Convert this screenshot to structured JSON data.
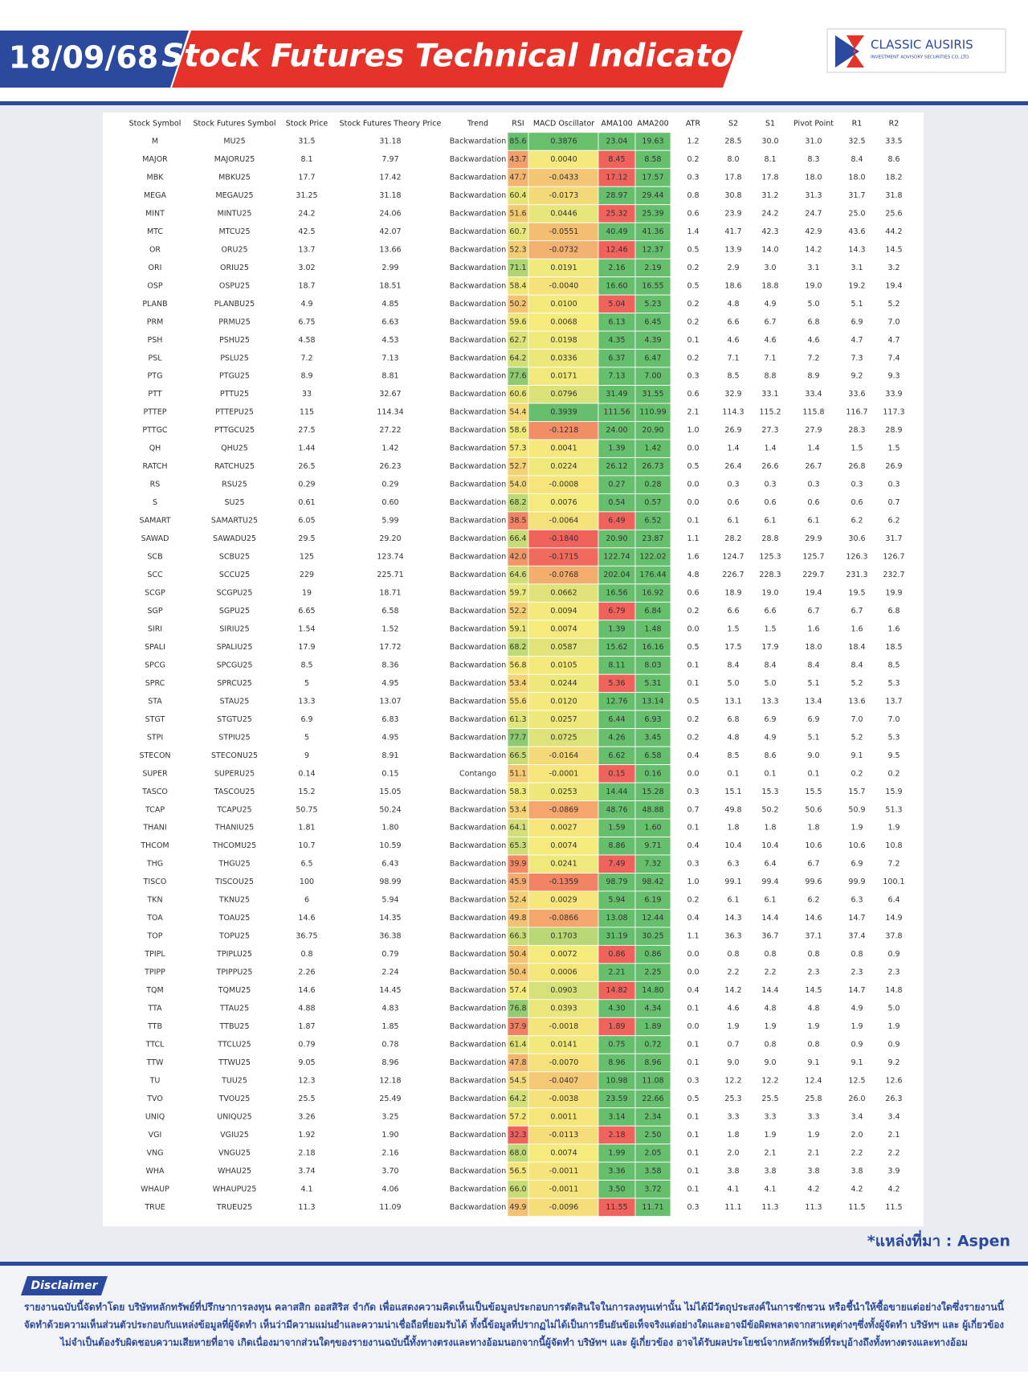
{
  "header": {
    "date": "18/09/68",
    "title": "Stock Futures Technical Indicator",
    "logo_name": "CLASSIC AUSIRIS",
    "logo_sub": "INVESTMENT ADVISORY SECURITIES CO.,LTD."
  },
  "table": {
    "columns": [
      "Stock Symbol",
      "Stock Futures Symbol",
      "Stock Price",
      "Stock Futures Theory Price",
      "Trend",
      "RSI",
      "MACD Oscillator",
      "AMA100",
      "AMA200",
      "ATR",
      "S2",
      "S1",
      "Pivot Point",
      "R1",
      "R2"
    ],
    "rows": [
      [
        "M",
        "MU25",
        "31.5",
        "31.18",
        "Backwardation",
        "85.6",
        "0.3876",
        "23.04",
        "19.63",
        "1.2",
        "28.5",
        "30.0",
        "31.0",
        "32.5",
        "33.5"
      ],
      [
        "MAJOR",
        "MAJORU25",
        "8.1",
        "7.97",
        "Backwardation",
        "43.7",
        "0.0040",
        "8.45",
        "8.58",
        "0.2",
        "8.0",
        "8.1",
        "8.3",
        "8.4",
        "8.6"
      ],
      [
        "MBK",
        "MBKU25",
        "17.7",
        "17.42",
        "Backwardation",
        "47.7",
        "-0.0433",
        "17.12",
        "17.57",
        "0.3",
        "17.8",
        "17.8",
        "18.0",
        "18.0",
        "18.2"
      ],
      [
        "MEGA",
        "MEGAU25",
        "31.25",
        "31.18",
        "Backwardation",
        "60.4",
        "-0.0173",
        "28.97",
        "29.44",
        "0.8",
        "30.8",
        "31.2",
        "31.3",
        "31.7",
        "31.8"
      ],
      [
        "MINT",
        "MINTU25",
        "24.2",
        "24.06",
        "Backwardation",
        "51.6",
        "0.0446",
        "25.32",
        "25.39",
        "0.6",
        "23.9",
        "24.2",
        "24.7",
        "25.0",
        "25.6"
      ],
      [
        "MTC",
        "MTCU25",
        "42.5",
        "42.07",
        "Backwardation",
        "60.7",
        "-0.0551",
        "40.49",
        "41.36",
        "1.4",
        "41.7",
        "42.3",
        "42.9",
        "43.6",
        "44.2"
      ],
      [
        "OR",
        "ORU25",
        "13.7",
        "13.66",
        "Backwardation",
        "52.3",
        "-0.0732",
        "12.46",
        "12.37",
        "0.5",
        "13.9",
        "14.0",
        "14.2",
        "14.3",
        "14.5"
      ],
      [
        "ORI",
        "ORIU25",
        "3.02",
        "2.99",
        "Backwardation",
        "71.1",
        "0.0191",
        "2.16",
        "2.19",
        "0.2",
        "2.9",
        "3.0",
        "3.1",
        "3.1",
        "3.2"
      ],
      [
        "OSP",
        "OSPU25",
        "18.7",
        "18.51",
        "Backwardation",
        "58.4",
        "-0.0040",
        "16.60",
        "16.55",
        "0.5",
        "18.6",
        "18.8",
        "19.0",
        "19.2",
        "19.4"
      ],
      [
        "PLANB",
        "PLANBU25",
        "4.9",
        "4.85",
        "Backwardation",
        "50.2",
        "0.0100",
        "5.04",
        "5.23",
        "0.2",
        "4.8",
        "4.9",
        "5.0",
        "5.1",
        "5.2"
      ],
      [
        "PRM",
        "PRMU25",
        "6.75",
        "6.63",
        "Backwardation",
        "59.6",
        "0.0068",
        "6.13",
        "6.45",
        "0.2",
        "6.6",
        "6.7",
        "6.8",
        "6.9",
        "7.0"
      ],
      [
        "PSH",
        "PSHU25",
        "4.58",
        "4.53",
        "Backwardation",
        "62.7",
        "0.0198",
        "4.35",
        "4.39",
        "0.1",
        "4.6",
        "4.6",
        "4.6",
        "4.7",
        "4.7"
      ],
      [
        "PSL",
        "PSLU25",
        "7.2",
        "7.13",
        "Backwardation",
        "64.2",
        "0.0336",
        "6.37",
        "6.47",
        "0.2",
        "7.1",
        "7.1",
        "7.2",
        "7.3",
        "7.4"
      ],
      [
        "PTG",
        "PTGU25",
        "8.9",
        "8.81",
        "Backwardation",
        "77.6",
        "0.0171",
        "7.13",
        "7.00",
        "0.3",
        "8.5",
        "8.8",
        "8.9",
        "9.2",
        "9.3"
      ],
      [
        "PTT",
        "PTTU25",
        "33",
        "32.67",
        "Backwardation",
        "60.6",
        "0.0796",
        "31.49",
        "31.55",
        "0.6",
        "32.9",
        "33.1",
        "33.4",
        "33.6",
        "33.9"
      ],
      [
        "PTTEP",
        "PTTEPU25",
        "115",
        "114.34",
        "Backwardation",
        "54.4",
        "0.3939",
        "111.56",
        "110.99",
        "2.1",
        "114.3",
        "115.2",
        "115.8",
        "116.7",
        "117.3"
      ],
      [
        "PTTGC",
        "PTTGCU25",
        "27.5",
        "27.22",
        "Backwardation",
        "58.6",
        "-0.1218",
        "24.00",
        "20.90",
        "1.0",
        "26.9",
        "27.3",
        "27.9",
        "28.3",
        "28.9"
      ],
      [
        "QH",
        "QHU25",
        "1.44",
        "1.42",
        "Backwardation",
        "57.3",
        "0.0041",
        "1.39",
        "1.42",
        "0.0",
        "1.4",
        "1.4",
        "1.4",
        "1.5",
        "1.5"
      ],
      [
        "RATCH",
        "RATCHU25",
        "26.5",
        "26.23",
        "Backwardation",
        "52.7",
        "0.0224",
        "26.12",
        "26.73",
        "0.5",
        "26.4",
        "26.6",
        "26.7",
        "26.8",
        "26.9"
      ],
      [
        "RS",
        "RSU25",
        "0.29",
        "0.29",
        "Backwardation",
        "54.0",
        "-0.0008",
        "0.27",
        "0.28",
        "0.0",
        "0.3",
        "0.3",
        "0.3",
        "0.3",
        "0.3"
      ],
      [
        "S",
        "SU25",
        "0.61",
        "0.60",
        "Backwardation",
        "68.2",
        "0.0076",
        "0.54",
        "0.57",
        "0.0",
        "0.6",
        "0.6",
        "0.6",
        "0.6",
        "0.7"
      ],
      [
        "SAMART",
        "SAMARTU25",
        "6.05",
        "5.99",
        "Backwardation",
        "38.5",
        "-0.0064",
        "6.49",
        "6.52",
        "0.1",
        "6.1",
        "6.1",
        "6.1",
        "6.2",
        "6.2"
      ],
      [
        "SAWAD",
        "SAWADU25",
        "29.5",
        "29.20",
        "Backwardation",
        "66.4",
        "-0.1840",
        "20.90",
        "23.87",
        "1.1",
        "28.2",
        "28.8",
        "29.9",
        "30.6",
        "31.7"
      ],
      [
        "SCB",
        "SCBU25",
        "125",
        "123.74",
        "Backwardation",
        "42.0",
        "-0.1715",
        "122.74",
        "122.02",
        "1.6",
        "124.7",
        "125.3",
        "125.7",
        "126.3",
        "126.7"
      ],
      [
        "SCC",
        "SCCU25",
        "229",
        "225.71",
        "Backwardation",
        "64.6",
        "-0.0768",
        "202.04",
        "176.44",
        "4.8",
        "226.7",
        "228.3",
        "229.7",
        "231.3",
        "232.7"
      ],
      [
        "SCGP",
        "SCGPU25",
        "19",
        "18.71",
        "Backwardation",
        "59.7",
        "0.0662",
        "16.56",
        "16.92",
        "0.6",
        "18.9",
        "19.0",
        "19.4",
        "19.5",
        "19.9"
      ],
      [
        "SGP",
        "SGPU25",
        "6.65",
        "6.58",
        "Backwardation",
        "52.2",
        "0.0094",
        "6.79",
        "6.84",
        "0.2",
        "6.6",
        "6.6",
        "6.7",
        "6.7",
        "6.8"
      ],
      [
        "SIRI",
        "SIRIU25",
        "1.54",
        "1.52",
        "Backwardation",
        "59.1",
        "0.0074",
        "1.39",
        "1.48",
        "0.0",
        "1.5",
        "1.5",
        "1.6",
        "1.6",
        "1.6"
      ],
      [
        "SPALI",
        "SPALIU25",
        "17.9",
        "17.72",
        "Backwardation",
        "68.2",
        "0.0587",
        "15.62",
        "16.16",
        "0.5",
        "17.5",
        "17.9",
        "18.0",
        "18.4",
        "18.5"
      ],
      [
        "SPCG",
        "SPCGU25",
        "8.5",
        "8.36",
        "Backwardation",
        "56.8",
        "0.0105",
        "8.11",
        "8.03",
        "0.1",
        "8.4",
        "8.4",
        "8.4",
        "8.4",
        "8.5"
      ],
      [
        "SPRC",
        "SPRCU25",
        "5",
        "4.95",
        "Backwardation",
        "53.4",
        "0.0244",
        "5.36",
        "5.31",
        "0.1",
        "5.0",
        "5.0",
        "5.1",
        "5.2",
        "5.3"
      ],
      [
        "STA",
        "STAU25",
        "13.3",
        "13.07",
        "Backwardation",
        "55.6",
        "0.0120",
        "12.76",
        "13.14",
        "0.5",
        "13.1",
        "13.3",
        "13.4",
        "13.6",
        "13.7"
      ],
      [
        "STGT",
        "STGTU25",
        "6.9",
        "6.83",
        "Backwardation",
        "61.3",
        "0.0257",
        "6.44",
        "6.93",
        "0.2",
        "6.8",
        "6.9",
        "6.9",
        "7.0",
        "7.0"
      ],
      [
        "STPI",
        "STPIU25",
        "5",
        "4.95",
        "Backwardation",
        "77.7",
        "0.0725",
        "4.26",
        "3.45",
        "0.2",
        "4.8",
        "4.9",
        "5.1",
        "5.2",
        "5.3"
      ],
      [
        "STECON",
        "STECONU25",
        "9",
        "8.91",
        "Backwardation",
        "66.5",
        "-0.0164",
        "6.62",
        "6.58",
        "0.4",
        "8.5",
        "8.6",
        "9.0",
        "9.1",
        "9.5"
      ],
      [
        "SUPER",
        "SUPERU25",
        "0.14",
        "0.15",
        "Contango",
        "51.1",
        "-0.0001",
        "0.15",
        "0.16",
        "0.0",
        "0.1",
        "0.1",
        "0.1",
        "0.2",
        "0.2"
      ],
      [
        "TASCO",
        "TASCOU25",
        "15.2",
        "15.05",
        "Backwardation",
        "58.3",
        "0.0253",
        "14.44",
        "15.28",
        "0.3",
        "15.1",
        "15.3",
        "15.5",
        "15.7",
        "15.9"
      ],
      [
        "TCAP",
        "TCAPU25",
        "50.75",
        "50.24",
        "Backwardation",
        "53.4",
        "-0.0869",
        "48.76",
        "48.88",
        "0.7",
        "49.8",
        "50.2",
        "50.6",
        "50.9",
        "51.3"
      ],
      [
        "THANI",
        "THANIU25",
        "1.81",
        "1.80",
        "Backwardation",
        "64.1",
        "0.0027",
        "1.59",
        "1.60",
        "0.1",
        "1.8",
        "1.8",
        "1.8",
        "1.9",
        "1.9"
      ],
      [
        "THCOM",
        "THCOMU25",
        "10.7",
        "10.59",
        "Backwardation",
        "65.3",
        "0.0074",
        "8.86",
        "9.71",
        "0.4",
        "10.4",
        "10.4",
        "10.6",
        "10.6",
        "10.8"
      ],
      [
        "THG",
        "THGU25",
        "6.5",
        "6.43",
        "Backwardation",
        "39.9",
        "0.0241",
        "7.49",
        "7.32",
        "0.3",
        "6.3",
        "6.4",
        "6.7",
        "6.9",
        "7.2"
      ],
      [
        "TISCO",
        "TISCOU25",
        "100",
        "98.99",
        "Backwardation",
        "45.9",
        "-0.1359",
        "98.79",
        "98.42",
        "1.0",
        "99.1",
        "99.4",
        "99.6",
        "99.9",
        "100.1"
      ],
      [
        "TKN",
        "TKNU25",
        "6",
        "5.94",
        "Backwardation",
        "52.4",
        "0.0029",
        "5.94",
        "6.19",
        "0.2",
        "6.1",
        "6.1",
        "6.2",
        "6.3",
        "6.4"
      ],
      [
        "TOA",
        "TOAU25",
        "14.6",
        "14.35",
        "Backwardation",
        "49.8",
        "-0.0866",
        "13.08",
        "12.44",
        "0.4",
        "14.3",
        "14.4",
        "14.6",
        "14.7",
        "14.9"
      ],
      [
        "TOP",
        "TOPU25",
        "36.75",
        "36.38",
        "Backwardation",
        "66.3",
        "0.1703",
        "31.19",
        "30.25",
        "1.1",
        "36.3",
        "36.7",
        "37.1",
        "37.4",
        "37.8"
      ],
      [
        "TPIPL",
        "TPIPLU25",
        "0.8",
        "0.79",
        "Backwardation",
        "50.4",
        "0.0072",
        "0.86",
        "0.86",
        "0.0",
        "0.8",
        "0.8",
        "0.8",
        "0.8",
        "0.9"
      ],
      [
        "TPIPP",
        "TPIPPU25",
        "2.26",
        "2.24",
        "Backwardation",
        "50.4",
        "0.0006",
        "2.21",
        "2.25",
        "0.0",
        "2.2",
        "2.2",
        "2.3",
        "2.3",
        "2.3"
      ],
      [
        "TQM",
        "TQMU25",
        "14.6",
        "14.45",
        "Backwardation",
        "57.4",
        "0.0903",
        "14.82",
        "14.80",
        "0.4",
        "14.2",
        "14.4",
        "14.5",
        "14.7",
        "14.8"
      ],
      [
        "TTA",
        "TTAU25",
        "4.88",
        "4.83",
        "Backwardation",
        "76.8",
        "0.0393",
        "4.30",
        "4.34",
        "0.1",
        "4.6",
        "4.8",
        "4.8",
        "4.9",
        "5.0"
      ],
      [
        "TTB",
        "TTBU25",
        "1.87",
        "1.85",
        "Backwardation",
        "37.9",
        "-0.0018",
        "1.89",
        "1.89",
        "0.0",
        "1.9",
        "1.9",
        "1.9",
        "1.9",
        "1.9"
      ],
      [
        "TTCL",
        "TTCLU25",
        "0.79",
        "0.78",
        "Backwardation",
        "61.4",
        "0.0141",
        "0.75",
        "0.72",
        "0.1",
        "0.7",
        "0.8",
        "0.8",
        "0.9",
        "0.9"
      ],
      [
        "TTW",
        "TTWU25",
        "9.05",
        "8.96",
        "Backwardation",
        "47.8",
        "-0.0070",
        "8.96",
        "8.96",
        "0.1",
        "9.0",
        "9.0",
        "9.1",
        "9.1",
        "9.2"
      ],
      [
        "TU",
        "TUU25",
        "12.3",
        "12.18",
        "Backwardation",
        "54.5",
        "-0.0407",
        "10.98",
        "11.08",
        "0.3",
        "12.2",
        "12.2",
        "12.4",
        "12.5",
        "12.6"
      ],
      [
        "TVO",
        "TVOU25",
        "25.5",
        "25.49",
        "Backwardation",
        "64.2",
        "-0.0038",
        "23.59",
        "22.66",
        "0.5",
        "25.3",
        "25.5",
        "25.8",
        "26.0",
        "26.3"
      ],
      [
        "UNIQ",
        "UNIQU25",
        "3.26",
        "3.25",
        "Backwardation",
        "57.2",
        "0.0011",
        "3.14",
        "2.34",
        "0.1",
        "3.3",
        "3.3",
        "3.3",
        "3.4",
        "3.4"
      ],
      [
        "VGI",
        "VGIU25",
        "1.92",
        "1.90",
        "Backwardation",
        "32.3",
        "-0.0113",
        "2.18",
        "2.50",
        "0.1",
        "1.8",
        "1.9",
        "1.9",
        "2.0",
        "2.1"
      ],
      [
        "VNG",
        "VNGU25",
        "2.18",
        "2.16",
        "Backwardation",
        "68.0",
        "0.0074",
        "1.99",
        "2.05",
        "0.1",
        "2.0",
        "2.1",
        "2.1",
        "2.2",
        "2.2"
      ],
      [
        "WHA",
        "WHAU25",
        "3.74",
        "3.70",
        "Backwardation",
        "56.5",
        "-0.0011",
        "3.36",
        "3.58",
        "0.1",
        "3.8",
        "3.8",
        "3.8",
        "3.8",
        "3.9"
      ],
      [
        "WHAUP",
        "WHAUPU25",
        "4.1",
        "4.06",
        "Backwardation",
        "66.0",
        "-0.0011",
        "3.50",
        "3.72",
        "0.1",
        "4.1",
        "4.1",
        "4.2",
        "4.2",
        "4.2"
      ],
      [
        "TRUE",
        "TRUEU25",
        "11.3",
        "11.09",
        "Backwardation",
        "49.9",
        "-0.0096",
        "11.55",
        "11.71",
        "0.3",
        "11.1",
        "11.3",
        "11.3",
        "11.5",
        "11.5"
      ]
    ],
    "color_scale": {
      "low": "#f0625c",
      "mid": "#f5ea7c",
      "high": "#66bf6c"
    },
    "ama200_color": "#66bf6c",
    "ama100_colors": [
      "#66bf6c",
      "#f0625c",
      "#f0625c",
      "#66bf6c",
      "#f0625c",
      "#66bf6c",
      "#f0625c",
      "#66bf6c",
      "#66bf6c",
      "#f0625c",
      "#66bf6c",
      "#66bf6c",
      "#66bf6c",
      "#66bf6c",
      "#66bf6c",
      "#66bf6c",
      "#66bf6c",
      "#66bf6c",
      "#66bf6c",
      "#66bf6c",
      "#66bf6c",
      "#f0625c",
      "#66bf6c",
      "#66bf6c",
      "#66bf6c",
      "#66bf6c",
      "#f0625c",
      "#66bf6c",
      "#66bf6c",
      "#66bf6c",
      "#f0625c",
      "#66bf6c",
      "#66bf6c",
      "#66bf6c",
      "#66bf6c",
      "#f0625c",
      "#66bf6c",
      "#66bf6c",
      "#66bf6c",
      "#66bf6c",
      "#f0625c",
      "#66bf6c",
      "#66bf6c",
      "#66bf6c",
      "#66bf6c",
      "#f0625c",
      "#66bf6c",
      "#f0625c",
      "#66bf6c",
      "#f0625c",
      "#66bf6c",
      "#66bf6c",
      "#66bf6c",
      "#66bf6c",
      "#66bf6c",
      "#f0625c",
      "#66bf6c",
      "#66bf6c",
      "#66bf6c",
      "#f0625c"
    ]
  },
  "source": "*แหล่งที่มา : Aspen",
  "disclaimer": {
    "title": "Disclaimer",
    "lines": [
      "รายงานฉบับนี้จัดทำโดย บริษัทหลักทรัพย์ที่ปรึกษาการลงทุน คลาสสิก ออสสิริส จำกัด เพื่อแสดงความคิดเห็นเป็นข้อมูลประกอบการตัดสินใจในการลงทุนเท่านั้น ไม่ได้มีวัตถุประสงค์ในการชักชวน หรือชี้นำให้ซื้อขายแต่อย่างใดซึ่งรายงานนี้",
      "จัดทำด้วยความเห็นส่วนตัวประกอบกับแหล่งข้อมูลที่ผู้จัดทำ เห็นว่ามีความแม่นยำและความน่าเชื่อถือที่ยอมรับได้ ทั้งนี้ข้อมูลที่ปรากฏไม่ได้เป็นการยืนยันข้อเท็จจริงแต่อย่างใดและอาจมีข้อผิดพลาดจากสาเหตุต่างๆซึ่งทั้งผู้จัดทำ บริษัทฯ และ ผู้เกี่ยวข้อง",
      "ไม่จำเป็นต้องรับผิดชอบความเสียหายที่อาจ เกิดเนื่องมาจากส่วนใดๆของรายงานฉบับนี้ทั้งทางตรงและทางอ้อมนอกจากนี้ผู้จัดทำ บริษัทฯ และ ผู้เกี่ยวข้อง อาจได้รับผลประโยชน์จากหลักทรัพย์ที่ระบุอ้างถึงทั้งทางตรงและทางอ้อม"
    ]
  }
}
